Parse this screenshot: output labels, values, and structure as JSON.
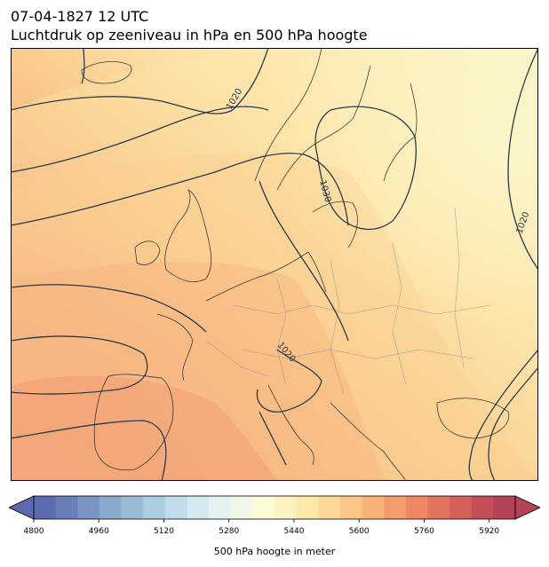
{
  "header": {
    "datetime": "07-04-1827 12 UTC",
    "title": "Luchtdruk op zeeniveau in hPa en 500 hPa hoogte"
  },
  "map": {
    "contour_labels": [
      "1020",
      "1030",
      "1020",
      "1020"
    ],
    "colors": {
      "land_border": "#3b3b3b",
      "isobar": "#2a3b4c"
    }
  },
  "colorbar": {
    "ticks": [
      "4800",
      "4960",
      "5120",
      "5280",
      "5440",
      "5600",
      "5760",
      "5920"
    ],
    "label": "500 hPa hoogte in meter",
    "colors": [
      "#5e6bb0",
      "#6a7fba",
      "#7894c3",
      "#86a9cc",
      "#98bcd6",
      "#abcde0",
      "#bfdceb",
      "#d3e8f1",
      "#e5f2f3",
      "#f1f8e8",
      "#fbfbd6",
      "#fdf3c0",
      "#fde8aa",
      "#fcd998",
      "#fbc687",
      "#f8b177",
      "#f49c6b",
      "#ee8762",
      "#e4735b",
      "#d65f57",
      "#c54f56",
      "#b44258"
    ]
  }
}
